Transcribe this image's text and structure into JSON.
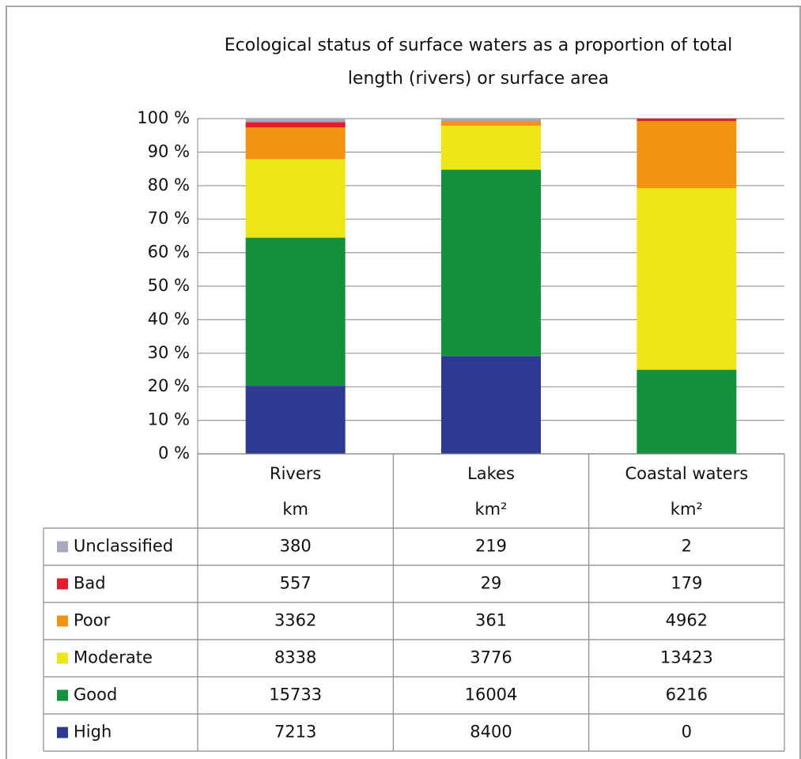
{
  "chart_data": {
    "type": "bar",
    "stacking": "percent",
    "title": [
      "Ecological status of surface waters as a proportion of total",
      "length (rivers) or surface area"
    ],
    "categories": [
      "Rivers",
      "Lakes",
      "Coastal waters"
    ],
    "units": [
      "km",
      "km²",
      "km²"
    ],
    "series": [
      {
        "name": "Unclassified",
        "color": "#a8a8bd",
        "values": [
          380,
          219,
          2
        ]
      },
      {
        "name": "Bad",
        "color": "#e31d2b",
        "values": [
          557,
          29,
          179
        ]
      },
      {
        "name": "Poor",
        "color": "#f29312",
        "values": [
          3362,
          361,
          4962
        ]
      },
      {
        "name": "Moderate",
        "color": "#f0e514",
        "values": [
          8338,
          3776,
          13423
        ]
      },
      {
        "name": "Good",
        "color": "#14913c",
        "values": [
          15733,
          16004,
          6216
        ]
      },
      {
        "name": "High",
        "color": "#2e3a92",
        "values": [
          7213,
          8400,
          0
        ]
      }
    ],
    "ylim": [
      0,
      100
    ],
    "yticks": [
      {
        "value": 0,
        "label": "0 %"
      },
      {
        "value": 10,
        "label": "10 %"
      },
      {
        "value": 20,
        "label": "20 %"
      },
      {
        "value": 30,
        "label": "30 %"
      },
      {
        "value": 40,
        "label": "40 %"
      },
      {
        "value": 50,
        "label": "50 %"
      },
      {
        "value": 60,
        "label": "60 %"
      },
      {
        "value": 70,
        "label": "70 %"
      },
      {
        "value": 80,
        "label": "80 %"
      },
      {
        "value": 90,
        "label": "90 %"
      },
      {
        "value": 100,
        "label": "100 %"
      }
    ],
    "grid": true
  }
}
